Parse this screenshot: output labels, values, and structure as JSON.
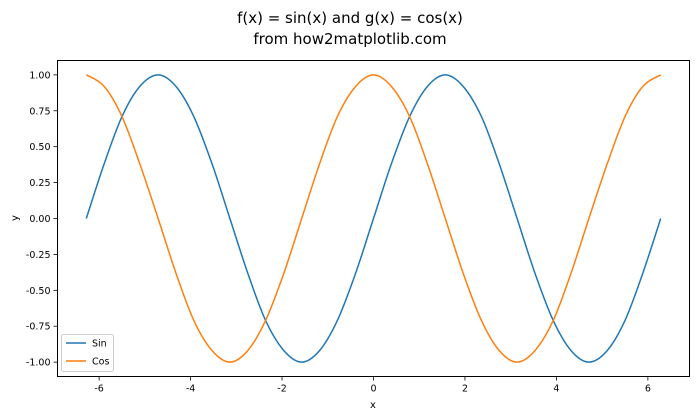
{
  "chart_data": {
    "type": "line",
    "title_lines": [
      "f(x) = sin(x) and g(x) = cos(x)",
      "from how2matplotlib.com"
    ],
    "xlabel": "x",
    "ylabel": "y",
    "xlim": [
      -6.91,
      6.91
    ],
    "ylim": [
      -1.1,
      1.1
    ],
    "x_ticks": [
      {
        "value": -6,
        "label": "-6"
      },
      {
        "value": -4,
        "label": "-4"
      },
      {
        "value": -2,
        "label": "-2"
      },
      {
        "value": 0,
        "label": "0"
      },
      {
        "value": 2,
        "label": "2"
      },
      {
        "value": 4,
        "label": "4"
      },
      {
        "value": 6,
        "label": "6"
      }
    ],
    "y_ticks": [
      {
        "value": 1.0,
        "label": "1.00"
      },
      {
        "value": 0.75,
        "label": "0.75"
      },
      {
        "value": 0.5,
        "label": "0.50"
      },
      {
        "value": 0.25,
        "label": "0.25"
      },
      {
        "value": 0.0,
        "label": "0.00"
      },
      {
        "value": -0.25,
        "label": "-0.25"
      },
      {
        "value": -0.5,
        "label": "-0.50"
      },
      {
        "value": -0.75,
        "label": "-0.75"
      },
      {
        "value": -1.0,
        "label": "-1.00"
      }
    ],
    "grid": false,
    "legend_position": "lower-left",
    "x": [
      -6.28,
      -5.89,
      -5.5,
      -5.11,
      -4.71,
      -4.32,
      -3.93,
      -3.53,
      -3.14,
      -2.75,
      -2.36,
      -1.96,
      -1.57,
      -1.18,
      -0.79,
      -0.39,
      0.0,
      0.39,
      0.79,
      1.18,
      1.57,
      1.96,
      2.36,
      2.75,
      3.14,
      3.53,
      3.93,
      4.32,
      4.71,
      5.11,
      5.5,
      5.89,
      6.28
    ],
    "series": [
      {
        "name": "Sin",
        "color": "#1f77b4",
        "values": [
          0.0,
          0.38,
          0.71,
          0.92,
          1.0,
          0.92,
          0.71,
          0.38,
          0.0,
          -0.38,
          -0.71,
          -0.92,
          -1.0,
          -0.92,
          -0.71,
          -0.38,
          0.0,
          0.38,
          0.71,
          0.92,
          1.0,
          0.92,
          0.71,
          0.38,
          0.0,
          -0.38,
          -0.71,
          -0.92,
          -1.0,
          -0.92,
          -0.71,
          -0.38,
          0.0
        ]
      },
      {
        "name": "Cos",
        "color": "#ff7f0e",
        "values": [
          1.0,
          0.92,
          0.71,
          0.38,
          0.0,
          -0.38,
          -0.71,
          -0.92,
          -1.0,
          -0.92,
          -0.71,
          -0.38,
          0.0,
          0.38,
          0.71,
          0.92,
          1.0,
          0.92,
          0.71,
          0.38,
          0.0,
          -0.38,
          -0.71,
          -0.92,
          -1.0,
          -0.92,
          -0.71,
          -0.38,
          0.0,
          0.38,
          0.71,
          0.92,
          1.0
        ]
      }
    ]
  }
}
